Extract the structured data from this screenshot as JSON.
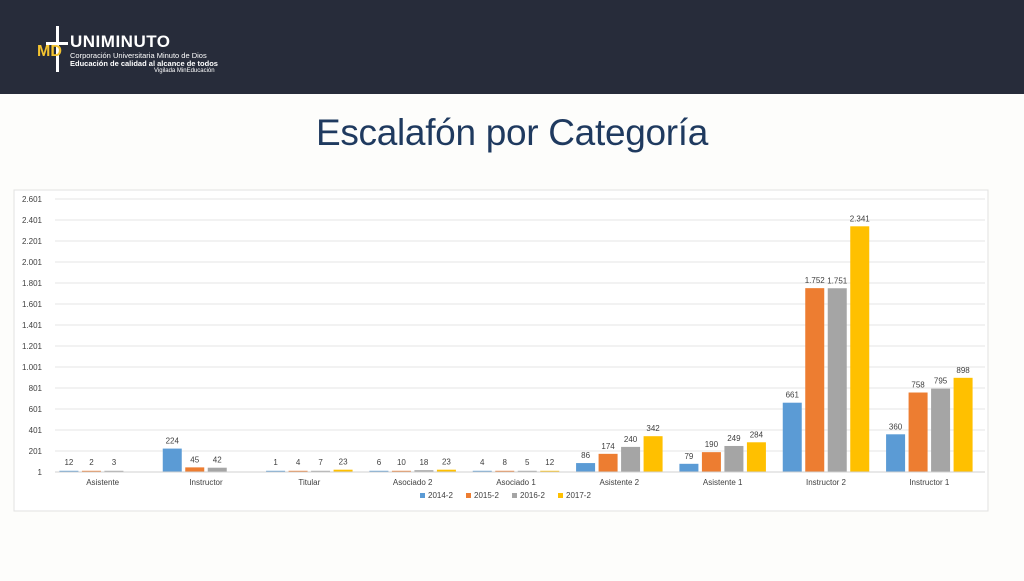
{
  "header": {
    "brand_name": "UNIMINUTO",
    "line1": "Corporación Universitaria Minuto de Dios",
    "line2": "Educación de calidad al alcance de todos",
    "line3": "Vigilada MinEducación",
    "logo_mark": "MD"
  },
  "title": "Escalafón por Categoría",
  "colors": {
    "header_bg": "#272c3a",
    "title": "#1f3a5f",
    "series": [
      "#5b9bd5",
      "#ed7d31",
      "#a5a5a5",
      "#ffc000"
    ]
  },
  "chart_data": {
    "type": "bar",
    "categories": [
      "Asistente",
      "Instructor",
      "Titular",
      "Asociado 2",
      "Asociado 1",
      "Asistente 2",
      "Asistente 1",
      "Instructor 2",
      "Instructor 1"
    ],
    "series": [
      {
        "name": "2014-2",
        "values": [
          12,
          224,
          1,
          6,
          4,
          86,
          79,
          661,
          360
        ],
        "labels": [
          "12",
          "224",
          "1",
          "6",
          "4",
          "86",
          "79",
          "661",
          "360"
        ]
      },
      {
        "name": "2015-2",
        "values": [
          2,
          45,
          4,
          10,
          8,
          174,
          190,
          1752,
          758
        ],
        "labels": [
          "2",
          "45",
          "4",
          "10",
          "8",
          "174",
          "190",
          "1.752",
          "758"
        ]
      },
      {
        "name": "2016-2",
        "values": [
          3,
          42,
          7,
          18,
          5,
          240,
          249,
          1751,
          795
        ],
        "labels": [
          "3",
          "42",
          "7",
          "18",
          "5",
          "240",
          "249",
          "1.751",
          "795"
        ]
      },
      {
        "name": "2017-2",
        "values": [
          null,
          null,
          23,
          23,
          12,
          342,
          284,
          2341,
          898
        ],
        "labels": [
          "",
          "",
          "23",
          "23",
          "12",
          "342",
          "284",
          "2.341",
          "898"
        ]
      }
    ],
    "y_ticks": [
      1,
      201,
      401,
      601,
      801,
      1001,
      1201,
      1401,
      1601,
      1801,
      2001,
      2201,
      2401,
      2601
    ],
    "y_tick_labels": [
      "1",
      "201",
      "401",
      "601",
      "801",
      "1.001",
      "1.201",
      "1.401",
      "1.601",
      "1.801",
      "2.001",
      "2.201",
      "2.401",
      "2.601"
    ],
    "ylim": [
      1,
      2601
    ],
    "grid": true,
    "legend": "bottom"
  }
}
